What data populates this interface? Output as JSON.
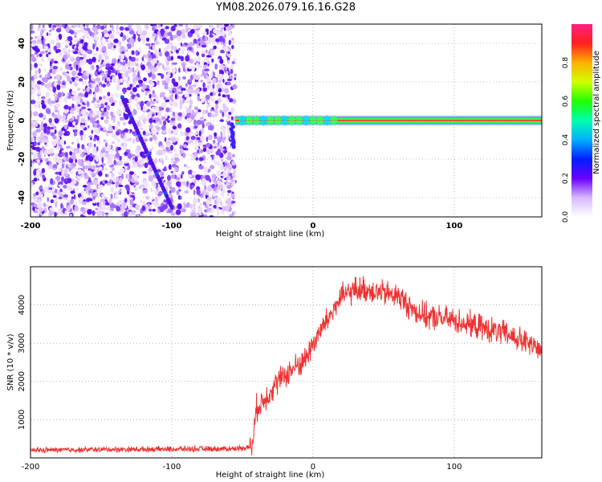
{
  "title": "YM08.2026.079.16.16.G28",
  "chart_data": [
    {
      "type": "heatmap",
      "xlabel": "Height of straight line (km)",
      "ylabel": "Frequency (Hz)",
      "xlim": [
        -200,
        162
      ],
      "ylim": [
        -50,
        50
      ],
      "xticks": [
        -200,
        -100,
        0,
        100
      ],
      "yticks": [
        -40,
        -20,
        0,
        20,
        40
      ],
      "grid": true,
      "colorbar": {
        "label": "Normalized spectral amplitude",
        "range": [
          0,
          1
        ],
        "ticks": [
          "0.0",
          "0.2",
          "0.4",
          "0.6",
          "0.8"
        ],
        "colors": [
          "#ffffff",
          "#d8b8ff",
          "#6a00ff",
          "#0020ff",
          "#00b0ff",
          "#00ffb0",
          "#20ff00",
          "#d0ff00",
          "#ffb000",
          "#ff2020",
          "#ff2080"
        ]
      },
      "noise_region_x": [
        -200,
        -55
      ],
      "diagonal_trace": {
        "x": [
          -135,
          -100
        ],
        "y": [
          12,
          -45
        ]
      },
      "signal_band": {
        "x": [
          -55,
          162
        ],
        "center_hz": 0,
        "half_width_hz": 2
      }
    },
    {
      "type": "line",
      "xlabel": "Height of straight line (km)",
      "ylabel": "SNR (10 * v/v)",
      "xlim": [
        -200,
        162
      ],
      "ylim": [
        0,
        5000
      ],
      "xticks": [
        -200,
        -100,
        0,
        100
      ],
      "yticks": [
        1000,
        2000,
        3000,
        4000
      ],
      "grid": true,
      "color": "#ee3333",
      "series": [
        {
          "x": [
            -200,
            -150,
            -100,
            -55,
            -43,
            -40,
            -35,
            -25,
            -15,
            -5,
            0,
            10,
            20,
            30,
            40,
            50,
            60,
            70,
            80,
            100,
            120,
            140,
            162
          ],
          "y": [
            200,
            220,
            230,
            240,
            300,
            1300,
            1500,
            2000,
            2300,
            2600,
            3000,
            3600,
            4200,
            4400,
            4400,
            4300,
            4250,
            3900,
            3700,
            3600,
            3400,
            3200,
            2800
          ]
        }
      ]
    }
  ]
}
